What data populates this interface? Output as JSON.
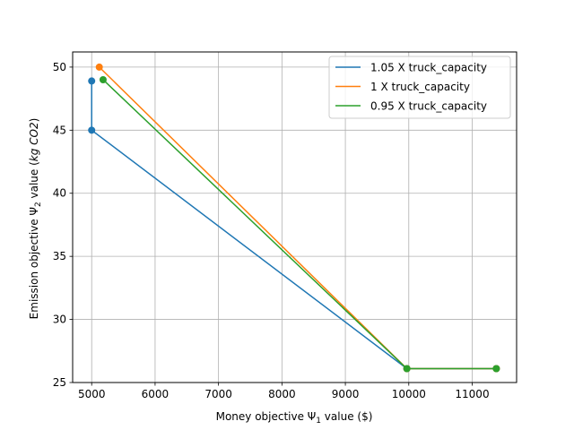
{
  "chart_data": {
    "type": "line",
    "xlabel": "Money objective Ψ₁ value ($)",
    "ylabel": "Emission objective Ψ₂ value (kg CO2)",
    "xlim": [
      4700,
      11700
    ],
    "ylim": [
      25,
      51.2
    ],
    "xticks": [
      5000,
      6000,
      7000,
      8000,
      9000,
      10000,
      11000
    ],
    "yticks": [
      25,
      30,
      35,
      40,
      45,
      50
    ],
    "grid": true,
    "legend_position": "top-right",
    "series": [
      {
        "name": "1.05 X truck_capacity",
        "color": "#1f77b4",
        "x": [
          11380,
          9970,
          5000,
          5000
        ],
        "y": [
          26.1,
          26.1,
          45.0,
          48.9
        ]
      },
      {
        "name": "1 X truck_capacity",
        "color": "#ff7f0e",
        "x": [
          11380,
          9970,
          5120
        ],
        "y": [
          26.1,
          26.1,
          50.0
        ]
      },
      {
        "name": "0.95 X truck_capacity",
        "color": "#2ca02c",
        "x": [
          11380,
          9970,
          5180
        ],
        "y": [
          26.1,
          26.1,
          49.0
        ]
      }
    ]
  }
}
